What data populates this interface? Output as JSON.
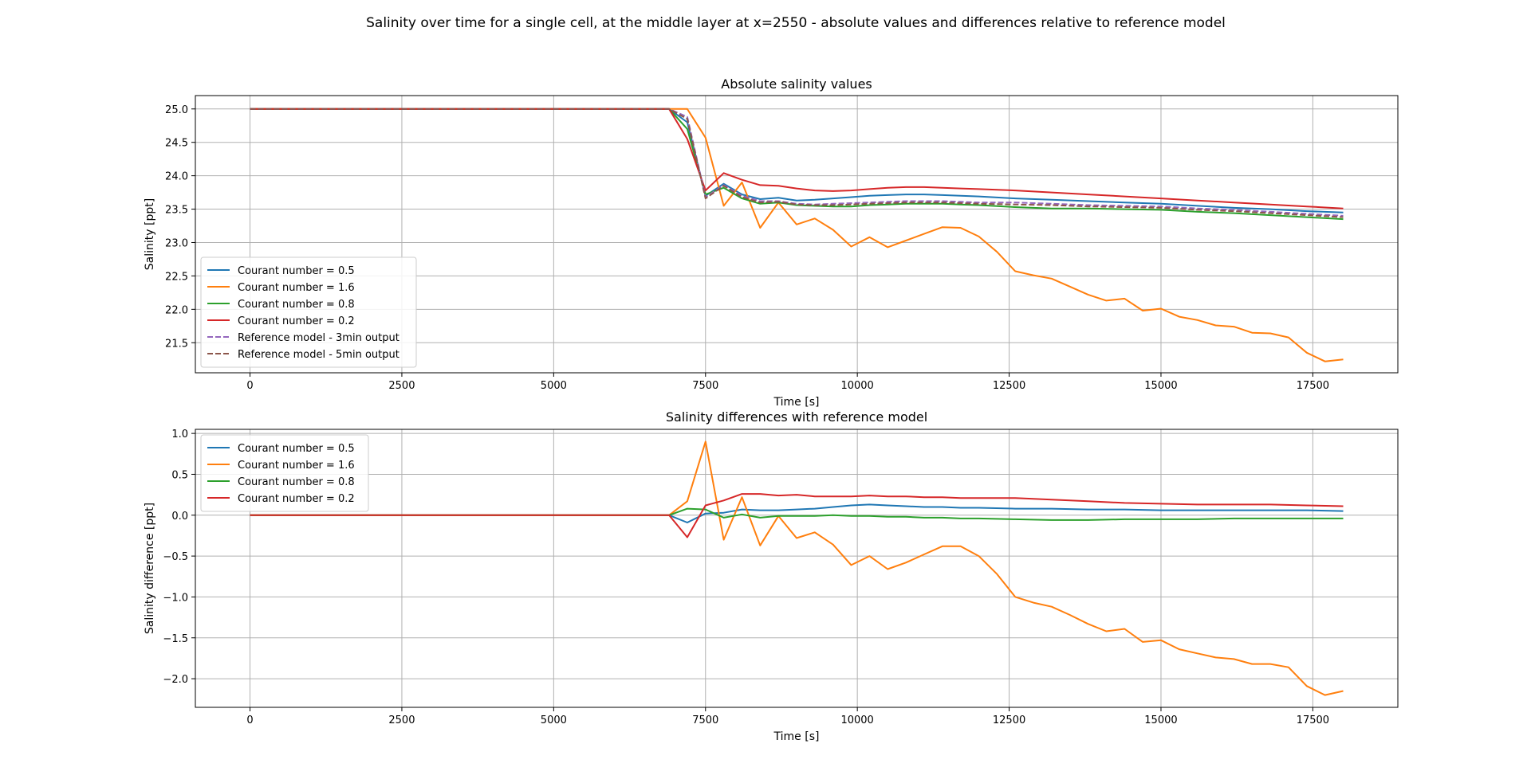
{
  "figure": {
    "suptitle": "Salinity over time for a single cell, at the middle layer at x=2550 - absolute values and differences relative to reference model"
  },
  "chart_data": [
    {
      "type": "line",
      "title": "Absolute salinity values",
      "xlabel": "Time [s]",
      "ylabel": "Salinity [ppt]",
      "xlim": [
        -900,
        18900
      ],
      "ylim": [
        21.05,
        25.2
      ],
      "xticks": [
        0,
        2500,
        5000,
        7500,
        10000,
        12500,
        15000,
        17500
      ],
      "yticks": [
        21.5,
        22.0,
        22.5,
        23.0,
        23.5,
        24.0,
        24.5,
        25.0
      ],
      "grid": true,
      "legend_position": "lower-left",
      "series": [
        {
          "name": "Courant number = 0.5",
          "color": "#1f77b4",
          "dash": "solid",
          "x": [
            0,
            6900,
            7200,
            7500,
            7800,
            8100,
            8400,
            8700,
            9000,
            9300,
            9600,
            9900,
            10200,
            10500,
            10800,
            11100,
            11400,
            11700,
            12000,
            12600,
            13200,
            13800,
            14400,
            15000,
            15600,
            16200,
            16800,
            17400,
            18000
          ],
          "y": [
            25.0,
            25.0,
            24.8,
            23.7,
            23.88,
            23.72,
            23.65,
            23.67,
            23.63,
            23.64,
            23.66,
            23.68,
            23.7,
            23.71,
            23.72,
            23.72,
            23.71,
            23.7,
            23.69,
            23.66,
            23.64,
            23.62,
            23.6,
            23.58,
            23.55,
            23.52,
            23.5,
            23.47,
            23.45
          ]
        },
        {
          "name": "Courant number = 1.6",
          "color": "#ff7f0e",
          "dash": "solid",
          "x": [
            0,
            6900,
            7200,
            7500,
            7800,
            8100,
            8400,
            8700,
            9000,
            9300,
            9600,
            9900,
            10200,
            10500,
            10800,
            11100,
            11400,
            11700,
            12000,
            12300,
            12600,
            12900,
            13200,
            13500,
            13800,
            14100,
            14400,
            14700,
            15000,
            15300,
            15600,
            15900,
            16200,
            16500,
            16800,
            17100,
            17400,
            17700,
            18000
          ],
          "y": [
            25.0,
            25.0,
            25.0,
            24.57,
            23.55,
            23.9,
            23.22,
            23.6,
            23.27,
            23.36,
            23.19,
            22.94,
            23.08,
            22.93,
            23.03,
            23.13,
            23.23,
            23.22,
            23.09,
            22.86,
            22.57,
            22.51,
            22.46,
            22.34,
            22.22,
            22.13,
            22.16,
            21.98,
            22.01,
            21.89,
            21.84,
            21.76,
            21.74,
            21.65,
            21.64,
            21.58,
            21.35,
            21.22,
            21.25
          ]
        },
        {
          "name": "Courant number = 0.8",
          "color": "#2ca02c",
          "dash": "solid",
          "x": [
            0,
            6900,
            7200,
            7500,
            7800,
            8100,
            8400,
            8700,
            9000,
            9300,
            9600,
            9900,
            10200,
            10500,
            10800,
            11100,
            11400,
            11700,
            12000,
            12600,
            13200,
            13800,
            14400,
            15000,
            15600,
            16200,
            16800,
            17400,
            18000
          ],
          "y": [
            25.0,
            25.0,
            24.7,
            23.72,
            23.82,
            23.66,
            23.58,
            23.6,
            23.56,
            23.55,
            23.54,
            23.54,
            23.56,
            23.57,
            23.58,
            23.58,
            23.58,
            23.57,
            23.56,
            23.53,
            23.51,
            23.51,
            23.5,
            23.49,
            23.46,
            23.44,
            23.41,
            23.38,
            23.35
          ]
        },
        {
          "name": "Courant number = 0.2",
          "color": "#d62728",
          "dash": "solid",
          "x": [
            0,
            6900,
            7200,
            7500,
            7800,
            8100,
            8400,
            8700,
            9000,
            9300,
            9600,
            9900,
            10200,
            10500,
            10800,
            11100,
            11400,
            11700,
            12000,
            12600,
            13200,
            13800,
            14400,
            15000,
            15600,
            16200,
            16800,
            17400,
            18000
          ],
          "y": [
            25.0,
            25.0,
            24.55,
            23.78,
            24.04,
            23.94,
            23.86,
            23.85,
            23.81,
            23.78,
            23.77,
            23.78,
            23.8,
            23.82,
            23.83,
            23.83,
            23.82,
            23.81,
            23.8,
            23.78,
            23.75,
            23.72,
            23.69,
            23.66,
            23.63,
            23.6,
            23.57,
            23.54,
            23.51
          ]
        },
        {
          "name": "Reference model - 3min output",
          "color": "#9467bd",
          "dash": "dashed",
          "x": [
            0,
            6900,
            7200,
            7500,
            7800,
            8100,
            8400,
            8700,
            9000,
            9300,
            9600,
            9900,
            10200,
            10500,
            10800,
            11100,
            11400,
            11700,
            12000,
            12600,
            13200,
            13800,
            14400,
            15000,
            15600,
            16200,
            16800,
            17400,
            18000
          ],
          "y": [
            25.0,
            25.0,
            24.88,
            23.68,
            23.86,
            23.7,
            23.62,
            23.62,
            23.58,
            23.57,
            23.58,
            23.59,
            23.6,
            23.61,
            23.62,
            23.62,
            23.62,
            23.61,
            23.6,
            23.6,
            23.58,
            23.56,
            23.55,
            23.54,
            23.51,
            23.49,
            23.46,
            23.43,
            23.4
          ]
        },
        {
          "name": "Reference model - 5min output",
          "color": "#8c564b",
          "dash": "dashed",
          "x": [
            0,
            6900,
            7200,
            7500,
            7800,
            8100,
            8400,
            8700,
            9000,
            9300,
            9600,
            9900,
            10200,
            10500,
            10800,
            11100,
            11400,
            11700,
            12000,
            12600,
            13200,
            13800,
            14400,
            15000,
            15600,
            16200,
            16800,
            17400,
            18000
          ],
          "y": [
            25.0,
            25.0,
            24.85,
            23.66,
            23.85,
            23.68,
            23.6,
            23.61,
            23.57,
            23.56,
            23.56,
            23.57,
            23.58,
            23.59,
            23.6,
            23.6,
            23.6,
            23.59,
            23.58,
            23.57,
            23.56,
            23.54,
            23.53,
            23.52,
            23.49,
            23.47,
            23.44,
            23.41,
            23.38
          ]
        }
      ]
    },
    {
      "type": "line",
      "title": "Salinity differences with reference model",
      "xlabel": "Time [s]",
      "ylabel": "Salinity difference [ppt]",
      "xlim": [
        -900,
        18900
      ],
      "ylim": [
        -2.35,
        1.05
      ],
      "xticks": [
        0,
        2500,
        5000,
        7500,
        10000,
        12500,
        15000,
        17500
      ],
      "yticks": [
        -2.0,
        -1.5,
        -1.0,
        -0.5,
        0.0,
        0.5,
        1.0
      ],
      "grid": true,
      "legend_position": "upper-left",
      "series": [
        {
          "name": "Courant number = 0.5",
          "color": "#1f77b4",
          "dash": "solid",
          "x": [
            0,
            6900,
            7200,
            7500,
            7800,
            8100,
            8400,
            8700,
            9000,
            9300,
            9600,
            9900,
            10200,
            10500,
            10800,
            11100,
            11400,
            11700,
            12000,
            12600,
            13200,
            13800,
            14400,
            15000,
            15600,
            16200,
            16800,
            17400,
            18000
          ],
          "y": [
            0.0,
            0.0,
            -0.09,
            0.02,
            0.03,
            0.07,
            0.06,
            0.06,
            0.07,
            0.08,
            0.1,
            0.12,
            0.13,
            0.12,
            0.11,
            0.1,
            0.1,
            0.09,
            0.09,
            0.08,
            0.08,
            0.07,
            0.07,
            0.06,
            0.06,
            0.06,
            0.06,
            0.06,
            0.05
          ]
        },
        {
          "name": "Courant number = 1.6",
          "color": "#ff7f0e",
          "dash": "solid",
          "x": [
            0,
            6900,
            7200,
            7500,
            7800,
            8100,
            8400,
            8700,
            9000,
            9300,
            9600,
            9900,
            10200,
            10500,
            10800,
            11100,
            11400,
            11700,
            12000,
            12300,
            12600,
            12900,
            13200,
            13500,
            13800,
            14100,
            14400,
            14700,
            15000,
            15300,
            15600,
            15900,
            16200,
            16500,
            16800,
            17100,
            17400,
            17700,
            18000
          ],
          "y": [
            0.0,
            0.0,
            0.17,
            0.9,
            -0.3,
            0.22,
            -0.37,
            -0.01,
            -0.28,
            -0.21,
            -0.36,
            -0.61,
            -0.5,
            -0.66,
            -0.58,
            -0.48,
            -0.38,
            -0.38,
            -0.5,
            -0.72,
            -1.0,
            -1.07,
            -1.12,
            -1.22,
            -1.33,
            -1.42,
            -1.39,
            -1.55,
            -1.53,
            -1.64,
            -1.69,
            -1.74,
            -1.76,
            -1.82,
            -1.82,
            -1.86,
            -2.09,
            -2.2,
            -2.15
          ]
        },
        {
          "name": "Courant number = 0.8",
          "color": "#2ca02c",
          "dash": "solid",
          "x": [
            0,
            6900,
            7200,
            7500,
            7800,
            8100,
            8400,
            8700,
            9000,
            9300,
            9600,
            9900,
            10200,
            10500,
            10800,
            11100,
            11400,
            11700,
            12000,
            12600,
            13200,
            13800,
            14400,
            15000,
            15600,
            16200,
            16800,
            17400,
            18000
          ],
          "y": [
            0.0,
            0.0,
            0.08,
            0.07,
            -0.03,
            0.01,
            -0.03,
            -0.01,
            -0.01,
            -0.01,
            0.0,
            -0.01,
            -0.01,
            -0.02,
            -0.02,
            -0.03,
            -0.03,
            -0.04,
            -0.04,
            -0.05,
            -0.06,
            -0.06,
            -0.05,
            -0.05,
            -0.05,
            -0.04,
            -0.04,
            -0.04,
            -0.04
          ]
        },
        {
          "name": "Courant number = 0.2",
          "color": "#d62728",
          "dash": "solid",
          "x": [
            0,
            6900,
            7200,
            7500,
            7800,
            8100,
            8400,
            8700,
            9000,
            9300,
            9600,
            9900,
            10200,
            10500,
            10800,
            11100,
            11400,
            11700,
            12000,
            12600,
            13200,
            13800,
            14400,
            15000,
            15600,
            16200,
            16800,
            17400,
            18000
          ],
          "y": [
            0.0,
            0.0,
            -0.27,
            0.12,
            0.18,
            0.26,
            0.26,
            0.24,
            0.25,
            0.23,
            0.23,
            0.23,
            0.24,
            0.23,
            0.23,
            0.22,
            0.22,
            0.21,
            0.21,
            0.21,
            0.19,
            0.17,
            0.15,
            0.14,
            0.13,
            0.13,
            0.13,
            0.12,
            0.11
          ]
        }
      ]
    }
  ]
}
